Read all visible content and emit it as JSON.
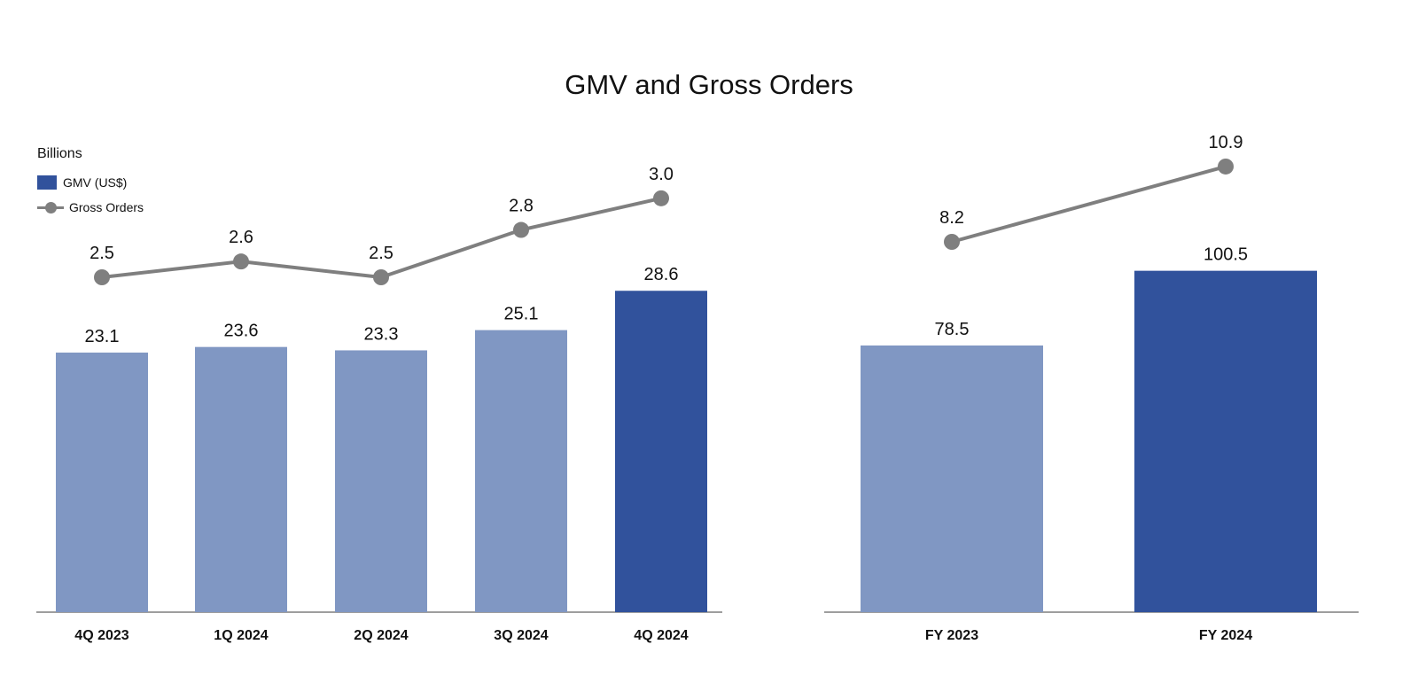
{
  "title": "GMV and Gross Orders",
  "unit_label": "Billions",
  "legend": {
    "gmv_label": "GMV (US$)",
    "orders_label": "Gross Orders"
  },
  "colors": {
    "bar_light": "#8097c3",
    "bar_dark": "#31529c",
    "line": "#7f7f7f",
    "axis": "#7f7f7f"
  },
  "chart_data": [
    {
      "type": "bar",
      "categories": [
        "4Q 2023",
        "1Q 2024",
        "2Q 2024",
        "3Q 2024",
        "4Q 2024"
      ],
      "series": [
        {
          "name": "GMV (US$)",
          "values": [
            23.1,
            23.6,
            23.3,
            25.1,
            28.6
          ],
          "highlight_index": 4
        },
        {
          "name": "Gross Orders",
          "type": "line",
          "values": [
            2.5,
            2.6,
            2.5,
            2.8,
            3.0
          ]
        }
      ]
    },
    {
      "type": "bar",
      "categories": [
        "FY 2023",
        "FY 2024"
      ],
      "series": [
        {
          "name": "GMV (US$)",
          "values": [
            78.5,
            100.5
          ],
          "highlight_index": 1
        },
        {
          "name": "Gross Orders",
          "type": "line",
          "values": [
            8.2,
            10.9
          ]
        }
      ]
    }
  ]
}
